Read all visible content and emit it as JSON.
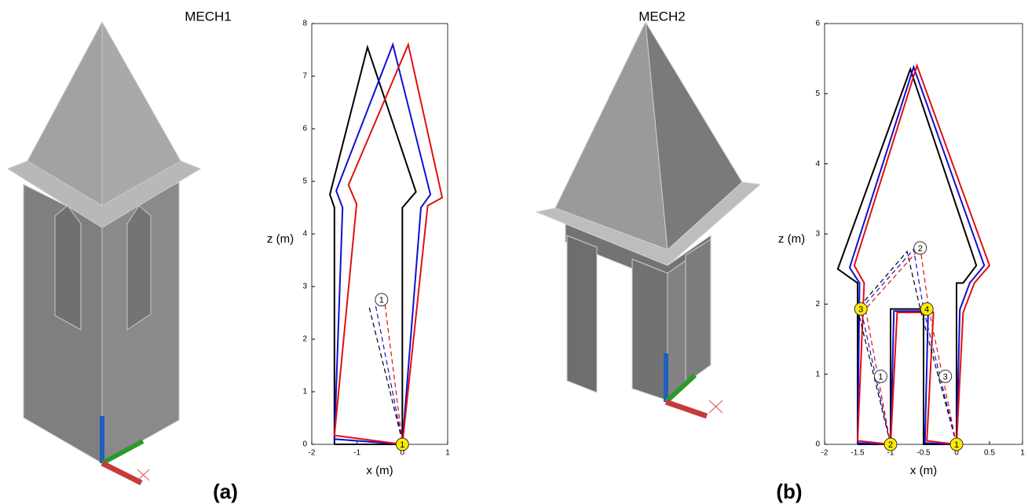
{
  "chart_data": [
    {
      "type": "line",
      "title": "MECH1",
      "panel_label": "(a)",
      "xlabel": "x (m)",
      "ylabel": "z (m)",
      "xlim": [
        -2,
        1
      ],
      "ylim": [
        0,
        8
      ],
      "xticks": [
        -2,
        -1,
        0,
        1
      ],
      "yticks": [
        0,
        1,
        2,
        3,
        4,
        5,
        6,
        7,
        8
      ],
      "series": [
        {
          "color": "#000000",
          "dash": false,
          "x": [
            -1.5,
            -1.5,
            -1.6,
            -0.77,
            0.3,
            0,
            0,
            -1.5
          ],
          "values": [
            0,
            4.5,
            4.75,
            7.55,
            4.8,
            4.5,
            0,
            0
          ]
        },
        {
          "color": "#1010d0",
          "dash": false,
          "x": [
            0,
            -1.5,
            -1.32,
            -1.46,
            -0.21,
            0.62,
            0.41,
            0
          ],
          "values": [
            0,
            0.1,
            4.5,
            4.82,
            7.6,
            4.75,
            4.5,
            0
          ]
        },
        {
          "color": "#e01010",
          "dash": false,
          "x": [
            0,
            -1.5,
            -1.01,
            -1.19,
            0.13,
            0.88,
            0.56,
            0
          ],
          "values": [
            0,
            0.17,
            4.57,
            4.93,
            7.6,
            4.69,
            4.54,
            0
          ]
        },
        {
          "color": "#000000",
          "dash": true,
          "x": [
            0,
            -0.73
          ],
          "values": [
            0.05,
            2.6
          ]
        },
        {
          "color": "#1010d0",
          "dash": true,
          "x": [
            0,
            -0.6
          ],
          "values": [
            0.05,
            2.68
          ]
        },
        {
          "color": "#e01010",
          "dash": true,
          "x": [
            0,
            -0.39
          ],
          "values": [
            0.05,
            2.7
          ]
        }
      ],
      "annotations": [
        {
          "label": "1",
          "x": -0.46,
          "y": 2.75,
          "fill": "#ffffff"
        },
        {
          "label": "1",
          "x": 0,
          "y": 0,
          "fill": "#ffeb00"
        }
      ]
    },
    {
      "type": "line",
      "title": "MECH2",
      "panel_label": "(b)",
      "xlabel": "x (m)",
      "ylabel": "z (m)",
      "xlim": [
        -2,
        1
      ],
      "ylim": [
        0,
        6
      ],
      "xticks": [
        -2,
        -1.5,
        -1,
        -0.5,
        0,
        0.5,
        1
      ],
      "yticks": [
        0,
        1,
        2,
        3,
        4,
        5,
        6
      ],
      "series": [
        {
          "color": "#000000",
          "dash": false,
          "x": [
            -1.5,
            -1.5,
            -1.8,
            -0.7,
            0.3,
            0.1,
            0,
            0,
            -0.5,
            -0.5,
            -1,
            -1,
            -1.5
          ],
          "values": [
            0,
            2.3,
            2.5,
            5.35,
            2.55,
            2.3,
            2.3,
            0,
            0,
            1.93,
            1.93,
            0,
            0
          ]
        },
        {
          "color": "#1010d0",
          "dash": false,
          "x": [
            -1.5,
            -1.47,
            -1.62,
            -0.65,
            0.42,
            0.2,
            0.05,
            0,
            -0.48,
            -0.43,
            -0.95,
            -1,
            -1.5
          ],
          "values": [
            0,
            2.3,
            2.52,
            5.38,
            2.55,
            2.3,
            1.92,
            0,
            0.02,
            1.9,
            1.9,
            0,
            0.02
          ]
        },
        {
          "color": "#e01010",
          "dash": false,
          "x": [
            -1.5,
            -1.4,
            -1.55,
            -0.6,
            0.5,
            0.27,
            0.1,
            0,
            -0.45,
            -0.35,
            -0.9,
            -1,
            -1.5
          ],
          "values": [
            0.05,
            2.3,
            2.55,
            5.4,
            2.55,
            2.3,
            1.88,
            0,
            0.05,
            1.88,
            1.88,
            0,
            0.05
          ]
        },
        {
          "color": "#000000",
          "dash": true,
          "x": [
            0,
            -0.55,
            -0.75,
            -1.5,
            -1
          ],
          "values": [
            0,
            1.93,
            2.75,
            1.93,
            0
          ]
        },
        {
          "color": "#1010d0",
          "dash": true,
          "x": [
            0,
            -0.5,
            -0.65,
            -1.45,
            -1
          ],
          "values": [
            0,
            1.93,
            2.78,
            1.93,
            0
          ]
        },
        {
          "color": "#e01010",
          "dash": true,
          "x": [
            0,
            -0.42,
            -0.55,
            -1.38,
            -1
          ],
          "values": [
            0,
            1.93,
            2.8,
            1.93,
            0
          ]
        }
      ],
      "annotations": [
        {
          "label": "1",
          "x": 0,
          "y": 0,
          "fill": "#ffeb00"
        },
        {
          "label": "2",
          "x": -1,
          "y": 0,
          "fill": "#ffeb00"
        },
        {
          "label": "3",
          "x": -1.45,
          "y": 1.93,
          "fill": "#ffeb00"
        },
        {
          "label": "4",
          "x": -0.45,
          "y": 1.93,
          "fill": "#ffeb00"
        },
        {
          "label": "2",
          "x": -0.55,
          "y": 2.8,
          "fill": "#ffffff"
        },
        {
          "label": "1",
          "x": -1.15,
          "y": 0.97,
          "fill": "#ffffff"
        },
        {
          "label": "3",
          "x": -0.17,
          "y": 0.97,
          "fill": "#ffffff"
        }
      ]
    }
  ]
}
